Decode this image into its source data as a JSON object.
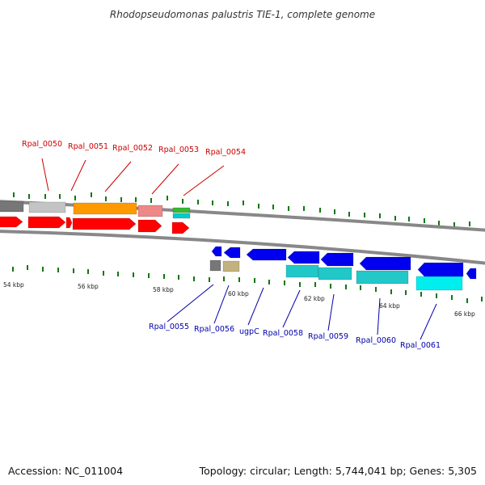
{
  "title": "Rhodopseudomonas palustris TIE-1, complete genome",
  "footer": {
    "accession": "Accession: NC_011004",
    "summary": "Topology: circular; Length: 5,744,041 bp; Genes: 5,305"
  },
  "colors": {
    "upper_label": "#cc0000",
    "lower_label": "#0000aa",
    "backbone": "#888888",
    "tick": "#117711",
    "red": "#ff0000",
    "grey": "#777777",
    "lightgrey": "#c4c4c4",
    "orange": "#ff9900",
    "pink": "#ee8888",
    "green": "#33bb33",
    "cyan": "#00cccc",
    "blue": "#0000ee",
    "khaki": "#c2b280",
    "teal": "#22c8c8",
    "lightcyan": "#00eeee"
  },
  "scale_labels": [
    "54 kbp",
    "56 kbp",
    "58 kbp",
    "60 kbp",
    "62 kbp",
    "64 kbp",
    "66 kbp"
  ],
  "upper_labels": [
    "Rpal_0050",
    "Rpal_0051",
    "Rpal_0052",
    "Rpal_0053",
    "Rpal_0054"
  ],
  "lower_labels": [
    "Rpal_0055",
    "Rpal_0056",
    "ugpC",
    "Rpal_0058",
    "Rpal_0059",
    "Rpal_0060",
    "Rpal_0061"
  ]
}
